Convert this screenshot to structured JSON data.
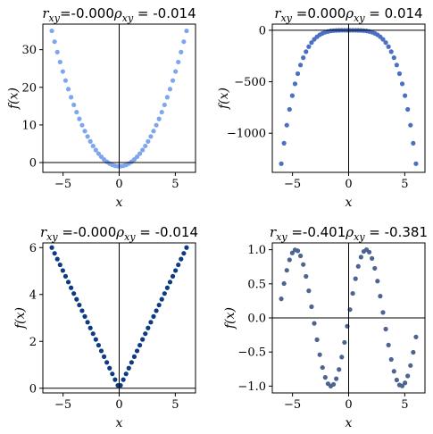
{
  "chart_data": [
    {
      "type": "scatter",
      "function": "x^2 - 1",
      "title": {
        "r_sym": "r",
        "r_sub": "xy",
        "r_val": "=-0.000",
        "rho_sym": "ρ",
        "rho_sub": "xy",
        "rho_val": " = -0.014"
      },
      "xlabel": "x",
      "ylabel": "f(x)",
      "xlim": [
        -6.8,
        6.8
      ],
      "ylim": [
        -2.6,
        36.8
      ],
      "xticks": [
        -5,
        0,
        5
      ],
      "xtick_labels": [
        "−5",
        "0",
        "5"
      ],
      "yticks": [
        0,
        10,
        20,
        30
      ],
      "ytick_labels": [
        "0",
        "10",
        "20",
        "30"
      ],
      "x_range": [
        -6,
        6
      ],
      "n_points": 50,
      "color": "#7ea6ee",
      "grid": false,
      "zero_lines": true
    },
    {
      "type": "scatter",
      "function": "-x^4",
      "title": {
        "r_sym": "r",
        "r_sub": "xy",
        "r_val": " =0.000",
        "rho_sym": "ρ",
        "rho_sub": "xy",
        "rho_val": " = 0.014"
      },
      "xlabel": "x",
      "ylabel": "f(x)",
      "xlim": [
        -6.8,
        6.8
      ],
      "ylim": [
        -1380,
        60
      ],
      "xticks": [
        -5,
        0,
        5
      ],
      "xtick_labels": [
        "−5",
        "0",
        "5"
      ],
      "yticks": [
        0,
        -500,
        -1000
      ],
      "ytick_labels": [
        "0",
        "−500",
        "−1000"
      ],
      "x_range": [
        -6,
        6
      ],
      "n_points": 50,
      "color": "#4a6fc3",
      "grid": false,
      "zero_lines": true
    },
    {
      "type": "scatter",
      "function": "|x|",
      "title": {
        "r_sym": "r",
        "r_sub": "xy",
        "r_val": " =-0.000",
        "rho_sym": "ρ",
        "rho_sub": "xy",
        "rho_val": " = -0.014"
      },
      "xlabel": "x",
      "ylabel": "f(x)",
      "xlim": [
        -6.8,
        6.8
      ],
      "ylim": [
        -0.2,
        6.2
      ],
      "xticks": [
        -5,
        0,
        5
      ],
      "xtick_labels": [
        "−5",
        "0",
        "5"
      ],
      "yticks": [
        0,
        2,
        4,
        6
      ],
      "ytick_labels": [
        "0",
        "2",
        "4",
        "6"
      ],
      "x_range": [
        -6,
        6
      ],
      "n_points": 50,
      "color": "#0d3a85",
      "grid": false,
      "zero_lines": true
    },
    {
      "type": "scatter",
      "function": "sin(x)",
      "title": {
        "r_sym": "r",
        "r_sub": "xy",
        "r_val": " =-0.401",
        "rho_sym": "ρ",
        "rho_sub": "xy",
        "rho_val": " = -0.381"
      },
      "xlabel": "x",
      "ylabel": "f(x)",
      "xlim": [
        -6.8,
        6.8
      ],
      "ylim": [
        -1.1,
        1.1
      ],
      "xticks": [
        -5,
        0,
        5
      ],
      "xtick_labels": [
        "−5",
        "0",
        "5"
      ],
      "yticks": [
        1.0,
        0.5,
        0.0,
        -0.5,
        -1.0
      ],
      "ytick_labels": [
        "1.0",
        "0.5",
        "0.0",
        "−0.5",
        "−1.0"
      ],
      "x_range": [
        -6,
        6
      ],
      "n_points": 50,
      "color": "#4d6491",
      "grid": false,
      "zero_lines": true
    }
  ]
}
